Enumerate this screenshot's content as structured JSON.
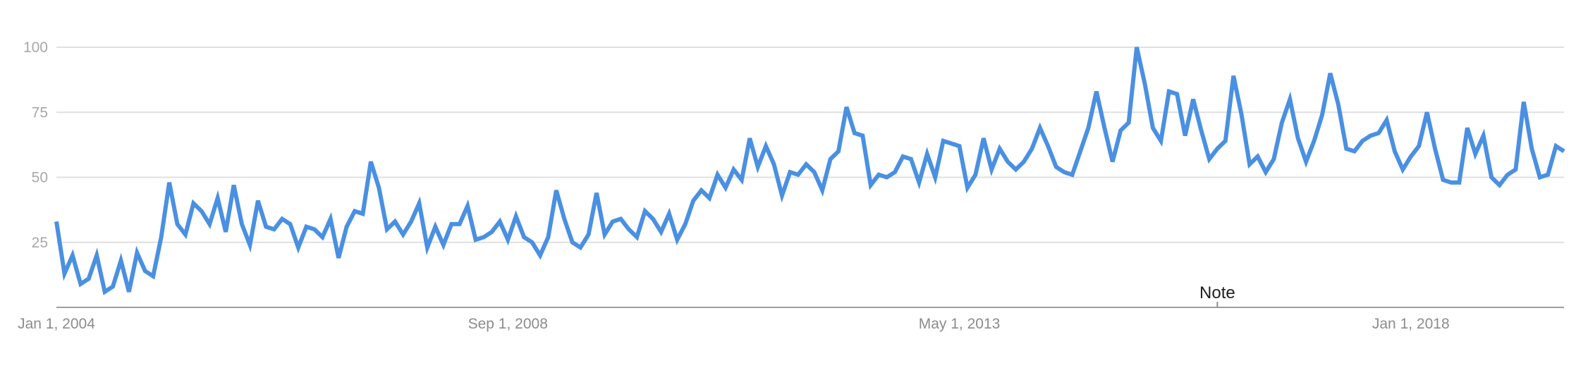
{
  "chart_data": {
    "type": "line",
    "title": "",
    "xlabel": "",
    "ylabel": "",
    "ylim": [
      0,
      100
    ],
    "y_ticks": [
      25,
      50,
      75,
      100
    ],
    "y_tick_labels": [
      "25",
      "50",
      "75",
      "100"
    ],
    "x_range": [
      "2004-01",
      "2019-08"
    ],
    "x_ticks": [
      {
        "label": "Jan 1, 2004",
        "date": "2004-01"
      },
      {
        "label": "Sep 1, 2008",
        "date": "2008-09"
      },
      {
        "label": "May 1, 2013",
        "date": "2013-05"
      },
      {
        "label": "Jan 1, 2018",
        "date": "2018-01"
      }
    ],
    "grid": true,
    "annotations": [
      {
        "text": "Note",
        "date": "2016-01"
      }
    ],
    "series": [
      {
        "color": "#4a90e2",
        "points": [
          [
            "2004-01",
            33
          ],
          [
            "2004-02",
            13
          ],
          [
            "2004-03",
            20
          ],
          [
            "2004-04",
            9
          ],
          [
            "2004-05",
            11
          ],
          [
            "2004-06",
            20
          ],
          [
            "2004-07",
            6
          ],
          [
            "2004-08",
            8
          ],
          [
            "2004-09",
            18
          ],
          [
            "2004-10",
            6
          ],
          [
            "2004-11",
            21
          ],
          [
            "2004-12",
            14
          ],
          [
            "2005-01",
            12
          ],
          [
            "2005-02",
            27
          ],
          [
            "2005-03",
            48
          ],
          [
            "2005-04",
            32
          ],
          [
            "2005-05",
            28
          ],
          [
            "2005-06",
            40
          ],
          [
            "2005-07",
            37
          ],
          [
            "2005-08",
            32
          ],
          [
            "2005-09",
            42
          ],
          [
            "2005-10",
            29
          ],
          [
            "2005-11",
            47
          ],
          [
            "2005-12",
            32
          ],
          [
            "2006-01",
            24
          ],
          [
            "2006-02",
            41
          ],
          [
            "2006-03",
            31
          ],
          [
            "2006-04",
            30
          ],
          [
            "2006-05",
            34
          ],
          [
            "2006-06",
            32
          ],
          [
            "2006-07",
            23
          ],
          [
            "2006-08",
            31
          ],
          [
            "2006-09",
            30
          ],
          [
            "2006-10",
            27
          ],
          [
            "2006-11",
            34
          ],
          [
            "2006-12",
            19
          ],
          [
            "2007-01",
            31
          ],
          [
            "2007-02",
            37
          ],
          [
            "2007-03",
            36
          ],
          [
            "2007-04",
            56
          ],
          [
            "2007-05",
            46
          ],
          [
            "2007-06",
            30
          ],
          [
            "2007-07",
            33
          ],
          [
            "2007-08",
            28
          ],
          [
            "2007-09",
            33
          ],
          [
            "2007-10",
            40
          ],
          [
            "2007-11",
            23
          ],
          [
            "2007-12",
            31
          ],
          [
            "2008-01",
            24
          ],
          [
            "2008-02",
            32
          ],
          [
            "2008-03",
            32
          ],
          [
            "2008-04",
            39
          ],
          [
            "2008-05",
            26
          ],
          [
            "2008-06",
            27
          ],
          [
            "2008-07",
            29
          ],
          [
            "2008-08",
            33
          ],
          [
            "2008-09",
            26
          ],
          [
            "2008-10",
            35
          ],
          [
            "2008-11",
            27
          ],
          [
            "2008-12",
            25
          ],
          [
            "2009-01",
            20
          ],
          [
            "2009-02",
            27
          ],
          [
            "2009-03",
            45
          ],
          [
            "2009-04",
            34
          ],
          [
            "2009-05",
            25
          ],
          [
            "2009-06",
            23
          ],
          [
            "2009-07",
            28
          ],
          [
            "2009-08",
            44
          ],
          [
            "2009-09",
            28
          ],
          [
            "2009-10",
            33
          ],
          [
            "2009-11",
            34
          ],
          [
            "2009-12",
            30
          ],
          [
            "2010-01",
            27
          ],
          [
            "2010-02",
            37
          ],
          [
            "2010-03",
            34
          ],
          [
            "2010-04",
            29
          ],
          [
            "2010-05",
            36
          ],
          [
            "2010-06",
            26
          ],
          [
            "2010-07",
            32
          ],
          [
            "2010-08",
            41
          ],
          [
            "2010-09",
            45
          ],
          [
            "2010-10",
            42
          ],
          [
            "2010-11",
            51
          ],
          [
            "2010-12",
            46
          ],
          [
            "2011-01",
            53
          ],
          [
            "2011-02",
            49
          ],
          [
            "2011-03",
            65
          ],
          [
            "2011-04",
            54
          ],
          [
            "2011-05",
            62
          ],
          [
            "2011-06",
            55
          ],
          [
            "2011-07",
            43
          ],
          [
            "2011-08",
            52
          ],
          [
            "2011-09",
            51
          ],
          [
            "2011-10",
            55
          ],
          [
            "2011-11",
            52
          ],
          [
            "2011-12",
            45
          ],
          [
            "2012-01",
            57
          ],
          [
            "2012-02",
            60
          ],
          [
            "2012-03",
            77
          ],
          [
            "2012-04",
            67
          ],
          [
            "2012-05",
            66
          ],
          [
            "2012-06",
            47
          ],
          [
            "2012-07",
            51
          ],
          [
            "2012-08",
            50
          ],
          [
            "2012-09",
            52
          ],
          [
            "2012-10",
            58
          ],
          [
            "2012-11",
            57
          ],
          [
            "2012-12",
            48
          ],
          [
            "2013-01",
            59
          ],
          [
            "2013-02",
            50
          ],
          [
            "2013-03",
            64
          ],
          [
            "2013-04",
            63
          ],
          [
            "2013-05",
            62
          ],
          [
            "2013-06",
            46
          ],
          [
            "2013-07",
            51
          ],
          [
            "2013-08",
            65
          ],
          [
            "2013-09",
            53
          ],
          [
            "2013-10",
            61
          ],
          [
            "2013-11",
            56
          ],
          [
            "2013-12",
            53
          ],
          [
            "2014-01",
            56
          ],
          [
            "2014-02",
            61
          ],
          [
            "2014-03",
            69
          ],
          [
            "2014-04",
            62
          ],
          [
            "2014-05",
            54
          ],
          [
            "2014-06",
            52
          ],
          [
            "2014-07",
            51
          ],
          [
            "2014-08",
            60
          ],
          [
            "2014-09",
            69
          ],
          [
            "2014-10",
            83
          ],
          [
            "2014-11",
            69
          ],
          [
            "2014-12",
            56
          ],
          [
            "2015-01",
            68
          ],
          [
            "2015-02",
            71
          ],
          [
            "2015-03",
            100
          ],
          [
            "2015-04",
            86
          ],
          [
            "2015-05",
            69
          ],
          [
            "2015-06",
            64
          ],
          [
            "2015-07",
            83
          ],
          [
            "2015-08",
            82
          ],
          [
            "2015-09",
            66
          ],
          [
            "2015-10",
            80
          ],
          [
            "2015-11",
            68
          ],
          [
            "2015-12",
            57
          ],
          [
            "2016-01",
            61
          ],
          [
            "2016-02",
            64
          ],
          [
            "2016-03",
            89
          ],
          [
            "2016-04",
            74
          ],
          [
            "2016-05",
            55
          ],
          [
            "2016-06",
            58
          ],
          [
            "2016-07",
            52
          ],
          [
            "2016-08",
            57
          ],
          [
            "2016-09",
            71
          ],
          [
            "2016-10",
            80
          ],
          [
            "2016-11",
            65
          ],
          [
            "2016-12",
            56
          ],
          [
            "2017-01",
            64
          ],
          [
            "2017-02",
            74
          ],
          [
            "2017-03",
            90
          ],
          [
            "2017-04",
            78
          ],
          [
            "2017-05",
            61
          ],
          [
            "2017-06",
            60
          ],
          [
            "2017-07",
            64
          ],
          [
            "2017-08",
            66
          ],
          [
            "2017-09",
            67
          ],
          [
            "2017-10",
            72
          ],
          [
            "2017-11",
            60
          ],
          [
            "2017-12",
            53
          ],
          [
            "2018-01",
            58
          ],
          [
            "2018-02",
            62
          ],
          [
            "2018-03",
            75
          ],
          [
            "2018-04",
            61
          ],
          [
            "2018-05",
            49
          ],
          [
            "2018-06",
            48
          ],
          [
            "2018-07",
            48
          ],
          [
            "2018-08",
            69
          ],
          [
            "2018-09",
            59
          ],
          [
            "2018-10",
            66
          ],
          [
            "2018-11",
            50
          ],
          [
            "2018-12",
            47
          ],
          [
            "2019-01",
            51
          ],
          [
            "2019-02",
            53
          ],
          [
            "2019-03",
            79
          ],
          [
            "2019-04",
            61
          ],
          [
            "2019-05",
            50
          ],
          [
            "2019-06",
            51
          ],
          [
            "2019-07",
            62
          ],
          [
            "2019-08",
            60
          ]
        ]
      }
    ]
  }
}
